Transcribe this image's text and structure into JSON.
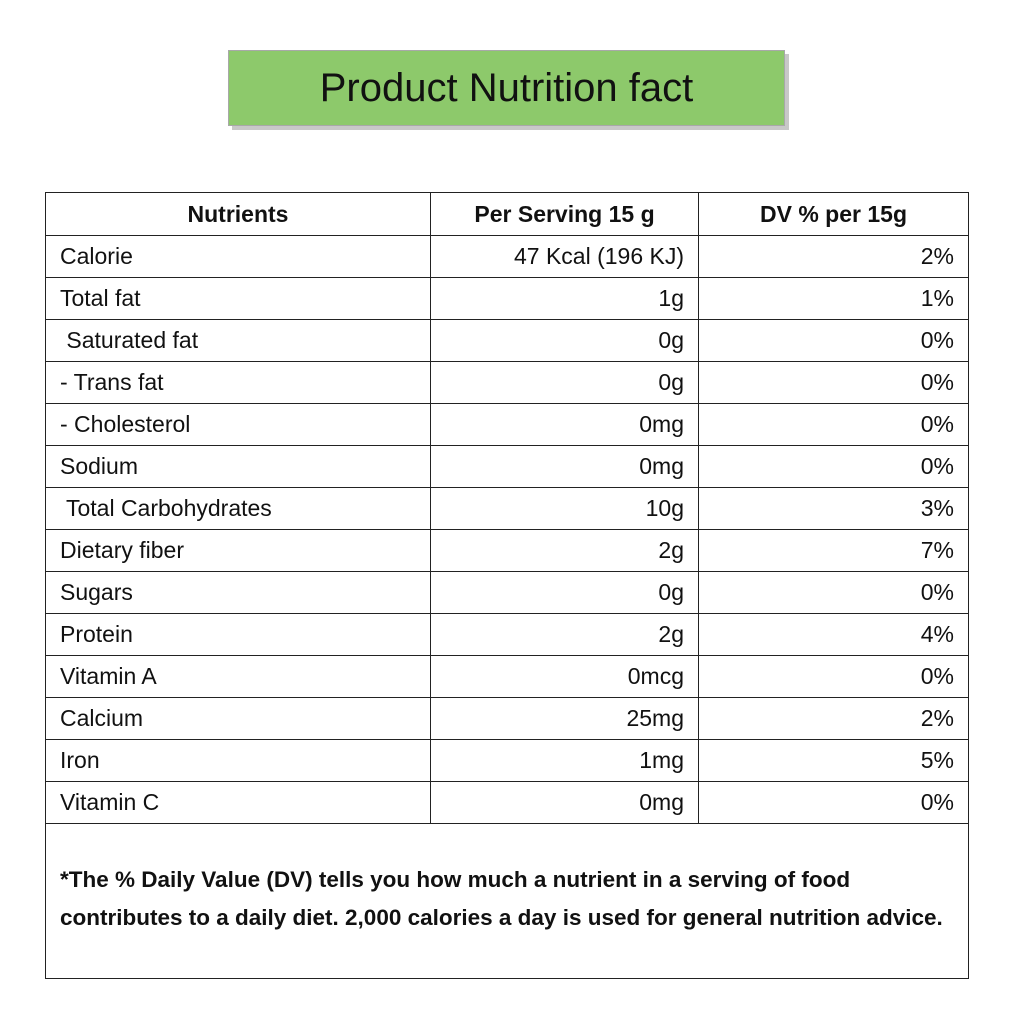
{
  "header": {
    "title": "Product Nutrition fact"
  },
  "table": {
    "columns": [
      "Nutrients",
      "Per Serving 15 g",
      "DV % per 15g"
    ],
    "rows": [
      [
        "Calorie",
        "47 Kcal (196 KJ)",
        "2%"
      ],
      [
        "Total fat",
        "1g",
        "1%"
      ],
      [
        " Saturated fat",
        "0g",
        "0%"
      ],
      [
        "- Trans fat",
        "0g",
        "0%"
      ],
      [
        "- Cholesterol",
        "0mg",
        "0%"
      ],
      [
        "Sodium",
        "0mg",
        "0%"
      ],
      [
        " Total Carbohydrates",
        "10g",
        "3%"
      ],
      [
        "Dietary fiber",
        "2g",
        "7%"
      ],
      [
        "Sugars",
        "0g",
        "0%"
      ],
      [
        "Protein",
        "2g",
        "4%"
      ],
      [
        "Vitamin A",
        "0mcg",
        "0%"
      ],
      [
        "Calcium",
        "25mg",
        "2%"
      ],
      [
        "Iron",
        "1mg",
        "5%"
      ],
      [
        "Vitamin C",
        "0mg",
        "0%"
      ]
    ],
    "footnote": "*The % Daily Value (DV) tells you how much a nutrient in a serving of food contributes to a daily diet. 2,000 calories a day is used for general nutrition advice."
  }
}
